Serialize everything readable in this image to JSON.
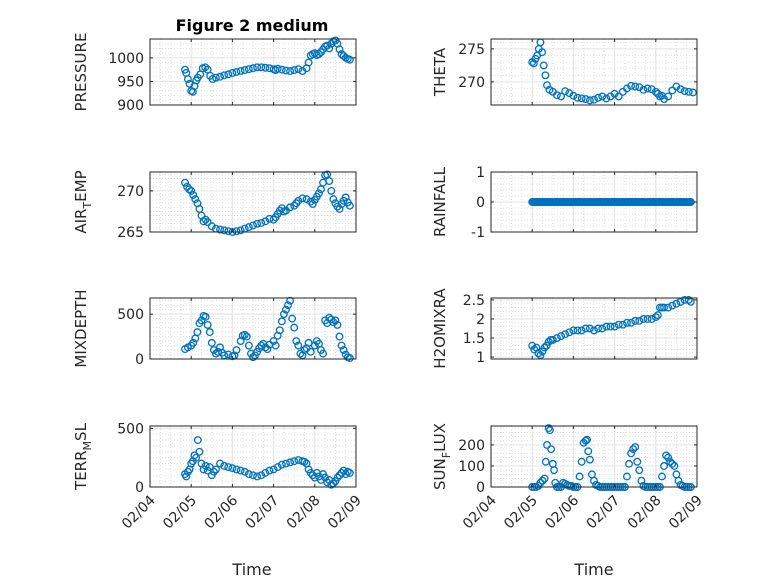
{
  "figure": {
    "title": "Figure 2 medium",
    "marker_color": "#0072bd",
    "x_tick_labels": [
      "02/04",
      "02/05",
      "02/06",
      "02/07",
      "02/08",
      "02/09"
    ],
    "x_label": "Time"
  },
  "chart_data": [
    {
      "type": "scatter",
      "ylabel": "PRESSURE",
      "ylim": [
        900,
        1040
      ],
      "yticks": [
        900,
        950,
        1000
      ],
      "ytick_labels": [
        "900",
        "950",
        "1000"
      ],
      "xlim": [
        4,
        9
      ],
      "grid": true,
      "marker": "open-circle",
      "x": [
        4.85,
        4.88,
        4.92,
        4.96,
        5.0,
        5.04,
        5.08,
        5.12,
        5.16,
        5.22,
        5.28,
        5.34,
        5.4,
        5.46,
        5.52,
        5.6,
        5.7,
        5.8,
        5.9,
        6.0,
        6.1,
        6.2,
        6.3,
        6.4,
        6.5,
        6.6,
        6.7,
        6.8,
        6.9,
        7.0,
        7.05,
        7.1,
        7.2,
        7.3,
        7.4,
        7.5,
        7.6,
        7.7,
        7.8,
        7.85,
        7.9,
        7.95,
        8.0,
        8.05,
        8.1,
        8.15,
        8.2,
        8.25,
        8.3,
        8.35,
        8.4,
        8.45,
        8.5,
        8.55,
        8.6,
        8.65,
        8.7,
        8.75,
        8.8,
        8.85
      ],
      "y": [
        975,
        968,
        955,
        945,
        930,
        928,
        940,
        952,
        958,
        965,
        978,
        980,
        975,
        962,
        955,
        958,
        960,
        963,
        965,
        968,
        970,
        972,
        974,
        976,
        978,
        980,
        980,
        979,
        978,
        976,
        974,
        977,
        975,
        973,
        972,
        974,
        976,
        972,
        978,
        990,
        1005,
        1008,
        1010,
        1006,
        1008,
        1012,
        1018,
        1024,
        1026,
        1020,
        1030,
        1035,
        1037,
        1030,
        1018,
        1008,
        1004,
        1000,
        998,
        996
      ]
    },
    {
      "type": "scatter",
      "ylabel": "THETA",
      "ylim": [
        266.5,
        276.5
      ],
      "yticks": [
        270,
        275
      ],
      "ytick_labels": [
        "270",
        "275"
      ],
      "xlim": [
        4,
        9
      ],
      "grid": true,
      "marker": "open-circle",
      "x": [
        5.0,
        5.04,
        5.08,
        5.12,
        5.16,
        5.2,
        5.24,
        5.28,
        5.32,
        5.36,
        5.42,
        5.5,
        5.6,
        5.7,
        5.8,
        5.9,
        6.0,
        6.1,
        6.2,
        6.3,
        6.4,
        6.5,
        6.6,
        6.7,
        6.8,
        6.9,
        7.0,
        7.1,
        7.2,
        7.3,
        7.4,
        7.5,
        7.6,
        7.7,
        7.8,
        7.9,
        8.0,
        8.05,
        8.1,
        8.15,
        8.2,
        8.3,
        8.4,
        8.5,
        8.6,
        8.7,
        8.8,
        8.9
      ],
      "y": [
        273.0,
        272.8,
        273.5,
        274.0,
        275.0,
        276.0,
        274.5,
        272.5,
        271.0,
        269.5,
        268.8,
        268.5,
        268.0,
        267.8,
        268.6,
        268.3,
        267.9,
        267.6,
        267.5,
        267.4,
        267.2,
        267.3,
        267.6,
        267.8,
        267.5,
        267.8,
        268.2,
        267.8,
        268.5,
        269.0,
        269.4,
        269.3,
        269.2,
        268.8,
        269.0,
        268.9,
        268.5,
        268.2,
        267.8,
        267.9,
        267.4,
        267.8,
        268.7,
        269.3,
        268.9,
        268.6,
        268.5,
        268.4
      ]
    },
    {
      "type": "scatter",
      "ylabel": "AIR_TEMP",
      "ylim": [
        265,
        272.3
      ],
      "yticks": [
        265,
        270
      ],
      "ytick_labels": [
        "265",
        "270"
      ],
      "xlim": [
        4,
        9
      ],
      "grid": true,
      "marker": "open-circle",
      "x": [
        4.85,
        4.9,
        4.95,
        5.0,
        5.05,
        5.1,
        5.15,
        5.2,
        5.25,
        5.3,
        5.35,
        5.4,
        5.5,
        5.6,
        5.7,
        5.8,
        5.9,
        6.0,
        6.1,
        6.2,
        6.3,
        6.4,
        6.5,
        6.6,
        6.7,
        6.8,
        6.9,
        7.0,
        7.05,
        7.1,
        7.15,
        7.2,
        7.25,
        7.3,
        7.4,
        7.5,
        7.55,
        7.6,
        7.7,
        7.8,
        7.9,
        7.95,
        8.0,
        8.05,
        8.1,
        8.15,
        8.2,
        8.25,
        8.3,
        8.35,
        8.4,
        8.45,
        8.5,
        8.55,
        8.6,
        8.65,
        8.7,
        8.75,
        8.8,
        8.85
      ],
      "y": [
        271.0,
        270.5,
        270.2,
        270.0,
        269.5,
        269.0,
        268.5,
        267.8,
        267.0,
        266.3,
        266.5,
        266.2,
        265.7,
        265.4,
        265.3,
        265.2,
        265.1,
        265.0,
        265.1,
        265.2,
        265.4,
        265.6,
        265.8,
        266.0,
        266.1,
        266.3,
        266.6,
        266.5,
        266.8,
        267.2,
        267.6,
        267.9,
        267.5,
        267.6,
        268.0,
        268.2,
        268.5,
        268.8,
        269.1,
        269.0,
        268.7,
        268.4,
        268.9,
        269.3,
        269.7,
        270.2,
        271.0,
        271.9,
        272.0,
        271.2,
        270.0,
        269.0,
        268.5,
        268.1,
        267.8,
        268.4,
        268.8,
        269.2,
        268.6,
        268.2
      ]
    },
    {
      "type": "scatter",
      "ylabel": "RAINFALL",
      "ylim": [
        -1,
        1
      ],
      "yticks": [
        -1,
        0,
        1
      ],
      "ytick_labels": [
        "-1",
        "0",
        "1"
      ],
      "xlim": [
        4,
        9
      ],
      "grid": true,
      "marker": "open-circle",
      "x_start": 5.0,
      "x_end": 8.85,
      "count": 140,
      "constant_value": 0
    },
    {
      "type": "scatter",
      "ylabel": "MIXDEPTH",
      "ylim": [
        0,
        680
      ],
      "yticks": [
        0,
        500
      ],
      "ytick_labels": [
        "0",
        "500"
      ],
      "xlim": [
        4,
        9
      ],
      "grid": true,
      "marker": "open-circle",
      "x": [
        4.85,
        4.92,
        5.0,
        5.05,
        5.1,
        5.15,
        5.2,
        5.25,
        5.3,
        5.35,
        5.4,
        5.45,
        5.5,
        5.55,
        5.6,
        5.65,
        5.7,
        5.75,
        5.8,
        5.9,
        6.0,
        6.05,
        6.1,
        6.2,
        6.25,
        6.3,
        6.35,
        6.4,
        6.45,
        6.5,
        6.55,
        6.6,
        6.65,
        6.7,
        6.75,
        6.8,
        6.85,
        6.9,
        7.0,
        7.05,
        7.1,
        7.15,
        7.2,
        7.25,
        7.3,
        7.35,
        7.4,
        7.45,
        7.5,
        7.55,
        7.6,
        7.65,
        7.7,
        7.75,
        7.8,
        7.85,
        7.9,
        8.0,
        8.05,
        8.1,
        8.15,
        8.2,
        8.25,
        8.3,
        8.35,
        8.4,
        8.45,
        8.5,
        8.55,
        8.6,
        8.65,
        8.7,
        8.75,
        8.8,
        8.85
      ],
      "y": [
        110,
        130,
        150,
        180,
        230,
        300,
        400,
        430,
        480,
        470,
        380,
        300,
        180,
        100,
        60,
        80,
        130,
        70,
        40,
        50,
        30,
        40,
        100,
        200,
        260,
        270,
        250,
        150,
        60,
        20,
        40,
        80,
        120,
        150,
        170,
        130,
        110,
        160,
        200,
        150,
        260,
        320,
        420,
        500,
        550,
        600,
        650,
        450,
        350,
        200,
        150,
        60,
        40,
        100,
        120,
        180,
        80,
        150,
        200,
        170,
        100,
        60,
        430,
        400,
        460,
        440,
        410,
        430,
        380,
        250,
        150,
        100,
        50,
        20,
        10
      ]
    },
    {
      "type": "scatter",
      "ylabel": "H2OMIXRA",
      "ylim": [
        0.95,
        2.55
      ],
      "yticks": [
        1,
        1.5,
        2,
        2.5
      ],
      "ytick_labels": [
        "1",
        "1.5",
        "2",
        "2.5"
      ],
      "xlim": [
        4,
        9
      ],
      "grid": true,
      "marker": "open-circle",
      "x": [
        5.0,
        5.05,
        5.1,
        5.15,
        5.2,
        5.25,
        5.3,
        5.35,
        5.4,
        5.45,
        5.5,
        5.6,
        5.7,
        5.8,
        5.9,
        6.0,
        6.1,
        6.2,
        6.3,
        6.4,
        6.5,
        6.6,
        6.7,
        6.8,
        6.9,
        7.0,
        7.1,
        7.2,
        7.3,
        7.4,
        7.5,
        7.6,
        7.7,
        7.8,
        7.9,
        8.0,
        8.05,
        8.1,
        8.15,
        8.2,
        8.3,
        8.4,
        8.5,
        8.6,
        8.7,
        8.8,
        8.85
      ],
      "y": [
        1.3,
        1.2,
        1.25,
        1.1,
        1.05,
        1.15,
        1.25,
        1.3,
        1.4,
        1.45,
        1.45,
        1.5,
        1.55,
        1.6,
        1.65,
        1.7,
        1.7,
        1.7,
        1.75,
        1.75,
        1.7,
        1.75,
        1.75,
        1.8,
        1.8,
        1.8,
        1.85,
        1.85,
        1.9,
        1.9,
        1.95,
        1.95,
        2.0,
        2.0,
        2.0,
        2.05,
        2.1,
        2.3,
        2.3,
        2.3,
        2.3,
        2.35,
        2.4,
        2.45,
        2.5,
        2.5,
        2.45
      ]
    },
    {
      "type": "scatter",
      "ylabel": "TERR_MSL",
      "ylim": [
        0,
        520
      ],
      "yticks": [
        0,
        500
      ],
      "ytick_labels": [
        "0",
        "500"
      ],
      "xlim": [
        4,
        9
      ],
      "grid": true,
      "marker": "open-circle",
      "x": [
        4.85,
        4.88,
        4.92,
        4.96,
        5.0,
        5.04,
        5.08,
        5.12,
        5.16,
        5.2,
        5.25,
        5.3,
        5.35,
        5.4,
        5.45,
        5.5,
        5.55,
        5.6,
        5.7,
        5.8,
        5.9,
        6.0,
        6.1,
        6.2,
        6.3,
        6.4,
        6.5,
        6.6,
        6.7,
        6.8,
        6.9,
        7.0,
        7.1,
        7.2,
        7.3,
        7.4,
        7.5,
        7.6,
        7.7,
        7.75,
        7.8,
        7.85,
        7.9,
        7.95,
        8.0,
        8.05,
        8.1,
        8.15,
        8.2,
        8.25,
        8.3,
        8.35,
        8.4,
        8.45,
        8.5,
        8.55,
        8.6,
        8.65,
        8.7,
        8.75,
        8.8,
        8.85
      ],
      "y": [
        110,
        90,
        130,
        150,
        200,
        220,
        270,
        250,
        400,
        300,
        200,
        150,
        180,
        140,
        170,
        100,
        130,
        150,
        200,
        180,
        170,
        160,
        150,
        140,
        130,
        110,
        100,
        90,
        100,
        120,
        140,
        150,
        170,
        190,
        200,
        210,
        220,
        230,
        220,
        215,
        200,
        150,
        120,
        100,
        80,
        120,
        90,
        60,
        110,
        80,
        40,
        60,
        20,
        30,
        50,
        80,
        100,
        120,
        140,
        110,
        130,
        120
      ]
    },
    {
      "type": "scatter",
      "ylabel": "SUN_FLUX",
      "ylim": [
        0,
        290
      ],
      "yticks": [
        0,
        100,
        200
      ],
      "ytick_labels": [
        "0",
        "100",
        "200"
      ],
      "xlim": [
        4,
        9
      ],
      "grid": true,
      "marker": "open-circle",
      "x": [
        5.0,
        5.05,
        5.1,
        5.15,
        5.2,
        5.25,
        5.3,
        5.33,
        5.36,
        5.4,
        5.43,
        5.46,
        5.5,
        5.53,
        5.56,
        5.6,
        5.65,
        5.7,
        5.75,
        5.8,
        5.85,
        5.9,
        5.95,
        6.0,
        6.05,
        6.1,
        6.15,
        6.2,
        6.25,
        6.3,
        6.33,
        6.36,
        6.4,
        6.45,
        6.5,
        6.55,
        6.6,
        6.65,
        6.7,
        6.75,
        6.8,
        6.85,
        6.9,
        6.95,
        7.0,
        7.05,
        7.1,
        7.15,
        7.2,
        7.25,
        7.3,
        7.35,
        7.4,
        7.45,
        7.5,
        7.55,
        7.6,
        7.65,
        7.7,
        7.75,
        7.8,
        7.85,
        7.9,
        7.95,
        8.0,
        8.05,
        8.1,
        8.15,
        8.2,
        8.25,
        8.3,
        8.35,
        8.4,
        8.45,
        8.5,
        8.55,
        8.6,
        8.65,
        8.7,
        8.75,
        8.8,
        8.85
      ],
      "y": [
        0,
        0,
        0,
        5,
        20,
        30,
        40,
        120,
        200,
        280,
        270,
        180,
        110,
        80,
        20,
        0,
        0,
        0,
        20,
        15,
        10,
        5,
        5,
        0,
        0,
        0,
        50,
        120,
        210,
        220,
        225,
        170,
        130,
        60,
        30,
        10,
        5,
        0,
        0,
        0,
        0,
        0,
        0,
        0,
        0,
        0,
        0,
        0,
        0,
        0,
        50,
        110,
        160,
        180,
        190,
        120,
        80,
        30,
        5,
        0,
        0,
        0,
        0,
        0,
        0,
        0,
        0,
        50,
        100,
        150,
        140,
        120,
        110,
        100,
        60,
        30,
        10,
        5,
        0,
        0,
        0,
        0
      ]
    }
  ]
}
